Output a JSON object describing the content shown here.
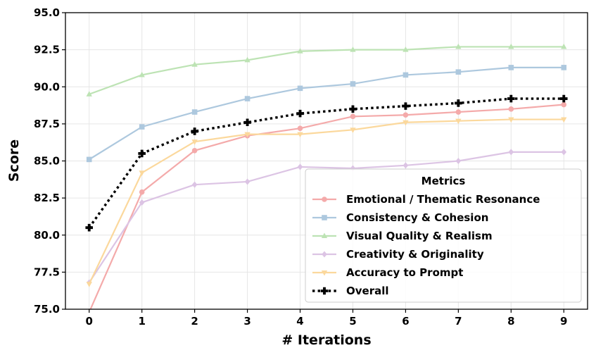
{
  "chart_data": {
    "type": "line",
    "title": "",
    "xlabel": "# Iterations",
    "ylabel": "Score",
    "x": [
      0,
      1,
      2,
      3,
      4,
      5,
      6,
      7,
      8,
      9
    ],
    "xlim": [
      -0.45,
      9.45
    ],
    "ylim": [
      75.0,
      95.0
    ],
    "yticks": [
      "75.0",
      "77.5",
      "80.0",
      "82.5",
      "85.0",
      "87.5",
      "90.0",
      "92.5",
      "95.0"
    ],
    "xticks": [
      "0",
      "1",
      "2",
      "3",
      "4",
      "5",
      "6",
      "7",
      "8",
      "9"
    ],
    "grid": true,
    "legend": {
      "title": "Metrics",
      "placement": "lower-right"
    },
    "series": [
      {
        "name": "Emotional / Thematic Resonance",
        "color": "#f4aaaa",
        "marker": "circle",
        "style": "solid",
        "values": [
          74.8,
          82.9,
          85.7,
          86.7,
          87.2,
          88.0,
          88.1,
          88.3,
          88.5,
          88.8
        ]
      },
      {
        "name": "Consistency & Cohesion",
        "color": "#adc8de",
        "marker": "square",
        "style": "solid",
        "values": [
          85.1,
          87.3,
          88.3,
          89.2,
          89.9,
          90.2,
          90.8,
          91.0,
          91.3,
          91.3
        ]
      },
      {
        "name": "Visual Quality & Realism",
        "color": "#bde3b4",
        "marker": "triangle-up",
        "style": "solid",
        "values": [
          89.5,
          90.8,
          91.5,
          91.8,
          92.4,
          92.5,
          92.5,
          92.7,
          92.7,
          92.7
        ]
      },
      {
        "name": "Creativity & Originality",
        "color": "#dcc4e4",
        "marker": "diamond",
        "style": "solid",
        "values": [
          76.8,
          82.2,
          83.4,
          83.6,
          84.6,
          84.5,
          84.7,
          85.0,
          85.6,
          85.6
        ]
      },
      {
        "name": "Accuracy to Prompt",
        "color": "#fbd89c",
        "marker": "triangle-down",
        "style": "solid",
        "values": [
          76.7,
          84.2,
          86.3,
          86.8,
          86.8,
          87.1,
          87.6,
          87.7,
          87.8,
          87.8
        ]
      },
      {
        "name": "Overall",
        "color": "#000000",
        "marker": "plus",
        "style": "dotted",
        "values": [
          80.5,
          85.5,
          87.0,
          87.6,
          88.2,
          88.5,
          88.7,
          88.9,
          89.2,
          89.2
        ]
      }
    ]
  }
}
